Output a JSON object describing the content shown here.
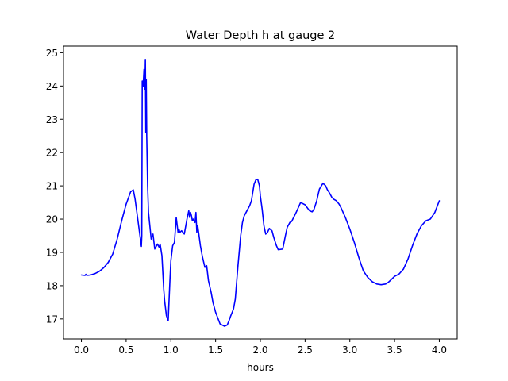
{
  "chart_data": {
    "type": "line",
    "title": "Water Depth h at gauge 2",
    "xlabel": "hours",
    "ylabel": "",
    "xlim": [
      -0.2,
      4.2
    ],
    "ylim": [
      16.4,
      25.2
    ],
    "xticks": [
      0.0,
      0.5,
      1.0,
      1.5,
      2.0,
      2.5,
      3.0,
      3.5,
      4.0
    ],
    "xtick_labels": [
      "0.0",
      "0.5",
      "1.0",
      "1.5",
      "2.0",
      "2.5",
      "3.0",
      "3.5",
      "4.0"
    ],
    "yticks": [
      17,
      18,
      19,
      20,
      21,
      22,
      23,
      24,
      25
    ],
    "ytick_labels": [
      "17",
      "18",
      "19",
      "20",
      "21",
      "22",
      "23",
      "24",
      "25"
    ],
    "grid": false,
    "series": [
      {
        "color": "#0000ff",
        "x": [
          0.0,
          0.04,
          0.05,
          0.06,
          0.1,
          0.15,
          0.2,
          0.25,
          0.3,
          0.35,
          0.4,
          0.45,
          0.5,
          0.55,
          0.58,
          0.6,
          0.63,
          0.67,
          0.675,
          0.68,
          0.69,
          0.7,
          0.71,
          0.715,
          0.72,
          0.725,
          0.73,
          0.74,
          0.75,
          0.78,
          0.8,
          0.82,
          0.85,
          0.87,
          0.88,
          0.9,
          0.92,
          0.93,
          0.95,
          0.97,
          0.99,
          1.0,
          1.02,
          1.04,
          1.06,
          1.08,
          1.09,
          1.1,
          1.12,
          1.15,
          1.18,
          1.2,
          1.21,
          1.22,
          1.23,
          1.24,
          1.25,
          1.27,
          1.28,
          1.29,
          1.3,
          1.32,
          1.33,
          1.35,
          1.38,
          1.4,
          1.42,
          1.45,
          1.47,
          1.5,
          1.55,
          1.6,
          1.63,
          1.65,
          1.67,
          1.7,
          1.72,
          1.75,
          1.78,
          1.8,
          1.82,
          1.85,
          1.88,
          1.9,
          1.93,
          1.95,
          1.97,
          1.99,
          2.0,
          2.02,
          2.04,
          2.06,
          2.08,
          2.1,
          2.13,
          2.15,
          2.18,
          2.2,
          2.25,
          2.28,
          2.3,
          2.33,
          2.35,
          2.4,
          2.45,
          2.5,
          2.55,
          2.58,
          2.6,
          2.63,
          2.66,
          2.7,
          2.73,
          2.75,
          2.77,
          2.8,
          2.82,
          2.85,
          2.88,
          2.9,
          2.95,
          3.0,
          3.05,
          3.1,
          3.15,
          3.2,
          3.25,
          3.3,
          3.35,
          3.4,
          3.43,
          3.45,
          3.5,
          3.55,
          3.6,
          3.65,
          3.7,
          3.75,
          3.8,
          3.85,
          3.9,
          3.95,
          4.0
        ],
        "y": [
          18.32,
          18.31,
          18.34,
          18.31,
          18.32,
          18.36,
          18.43,
          18.54,
          18.7,
          18.95,
          19.4,
          19.95,
          20.45,
          20.82,
          20.88,
          20.6,
          20.0,
          19.18,
          19.5,
          24.15,
          24.0,
          24.5,
          23.9,
          24.8,
          22.6,
          24.2,
          22.5,
          21.0,
          20.2,
          19.4,
          19.55,
          19.1,
          19.25,
          19.15,
          19.25,
          18.9,
          17.9,
          17.55,
          17.1,
          16.95,
          18.2,
          18.75,
          19.2,
          19.3,
          20.05,
          19.6,
          19.7,
          19.6,
          19.65,
          19.55,
          20.0,
          20.25,
          20.05,
          20.2,
          20.1,
          19.95,
          20.0,
          19.9,
          20.2,
          19.6,
          19.8,
          19.4,
          19.2,
          18.9,
          18.55,
          18.6,
          18.15,
          17.8,
          17.5,
          17.2,
          16.85,
          16.78,
          16.82,
          16.95,
          17.1,
          17.3,
          17.6,
          18.6,
          19.5,
          19.9,
          20.1,
          20.25,
          20.4,
          20.55,
          21.05,
          21.18,
          21.2,
          21.0,
          20.7,
          20.3,
          19.8,
          19.55,
          19.6,
          19.72,
          19.65,
          19.45,
          19.2,
          19.08,
          19.1,
          19.5,
          19.75,
          19.9,
          19.93,
          20.2,
          20.5,
          20.43,
          20.25,
          20.22,
          20.3,
          20.55,
          20.9,
          21.08,
          21.0,
          20.88,
          20.8,
          20.65,
          20.6,
          20.55,
          20.45,
          20.35,
          20.05,
          19.7,
          19.3,
          18.85,
          18.45,
          18.25,
          18.12,
          18.05,
          18.03,
          18.05,
          18.1,
          18.15,
          18.28,
          18.35,
          18.5,
          18.8,
          19.2,
          19.55,
          19.8,
          19.95,
          20.0,
          20.2,
          20.55
        ]
      }
    ]
  }
}
